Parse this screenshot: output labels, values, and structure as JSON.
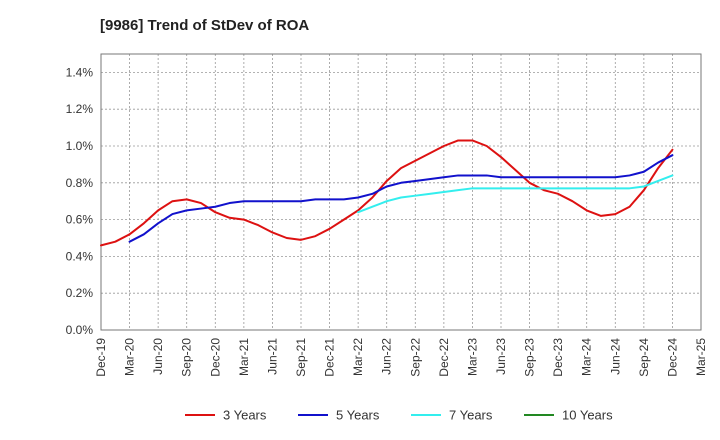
{
  "chart_data": {
    "type": "line",
    "title": "[9986]  Trend of StDev of ROA",
    "xlabel": "",
    "ylabel": "",
    "x_ticks": [
      "Dec-19",
      "Mar-20",
      "Jun-20",
      "Sep-20",
      "Dec-20",
      "Mar-21",
      "Jun-21",
      "Sep-21",
      "Dec-21",
      "Mar-22",
      "Jun-22",
      "Sep-22",
      "Dec-22",
      "Mar-23",
      "Jun-23",
      "Sep-23",
      "Dec-23",
      "Mar-24",
      "Jun-24",
      "Sep-24",
      "Dec-24",
      "Mar-25"
    ],
    "y_ticks": [
      "0.0%",
      "0.2%",
      "0.4%",
      "0.6%",
      "0.8%",
      "1.0%",
      "1.2%",
      "1.4%"
    ],
    "ylim": [
      0,
      1.5
    ],
    "grid": true,
    "legend_position": "bottom",
    "series": [
      {
        "name": "3 Years",
        "color": "#dd1111",
        "points": [
          [
            0,
            0.46
          ],
          [
            0.5,
            0.48
          ],
          [
            1,
            0.52
          ],
          [
            1.5,
            0.58
          ],
          [
            2,
            0.65
          ],
          [
            2.5,
            0.7
          ],
          [
            3,
            0.71
          ],
          [
            3.5,
            0.69
          ],
          [
            4,
            0.64
          ],
          [
            4.5,
            0.61
          ],
          [
            5,
            0.6
          ],
          [
            5.5,
            0.57
          ],
          [
            6,
            0.53
          ],
          [
            6.5,
            0.5
          ],
          [
            7,
            0.49
          ],
          [
            7.5,
            0.51
          ],
          [
            8,
            0.55
          ],
          [
            8.5,
            0.6
          ],
          [
            9,
            0.65
          ],
          [
            9.5,
            0.72
          ],
          [
            10,
            0.81
          ],
          [
            10.5,
            0.88
          ],
          [
            11,
            0.92
          ],
          [
            11.5,
            0.96
          ],
          [
            12,
            1.0
          ],
          [
            12.5,
            1.03
          ],
          [
            13,
            1.03
          ],
          [
            13.5,
            1.0
          ],
          [
            14,
            0.94
          ],
          [
            14.5,
            0.87
          ],
          [
            15,
            0.8
          ],
          [
            15.5,
            0.76
          ],
          [
            16,
            0.74
          ],
          [
            16.5,
            0.7
          ],
          [
            17,
            0.65
          ],
          [
            17.5,
            0.62
          ],
          [
            18,
            0.63
          ],
          [
            18.5,
            0.67
          ],
          [
            19,
            0.76
          ],
          [
            19.5,
            0.88
          ],
          [
            20,
            0.98
          ]
        ]
      },
      {
        "name": "5 Years",
        "color": "#1111cc",
        "points": [
          [
            1,
            0.48
          ],
          [
            1.5,
            0.52
          ],
          [
            2,
            0.58
          ],
          [
            2.5,
            0.63
          ],
          [
            3,
            0.65
          ],
          [
            3.5,
            0.66
          ],
          [
            4,
            0.67
          ],
          [
            4.5,
            0.69
          ],
          [
            5,
            0.7
          ],
          [
            5.5,
            0.7
          ],
          [
            6,
            0.7
          ],
          [
            6.5,
            0.7
          ],
          [
            7,
            0.7
          ],
          [
            7.5,
            0.71
          ],
          [
            8,
            0.71
          ],
          [
            8.5,
            0.71
          ],
          [
            9,
            0.72
          ],
          [
            9.5,
            0.74
          ],
          [
            10,
            0.78
          ],
          [
            10.5,
            0.8
          ],
          [
            11,
            0.81
          ],
          [
            11.5,
            0.82
          ],
          [
            12,
            0.83
          ],
          [
            12.5,
            0.84
          ],
          [
            13,
            0.84
          ],
          [
            13.5,
            0.84
          ],
          [
            14,
            0.83
          ],
          [
            14.5,
            0.83
          ],
          [
            15,
            0.83
          ],
          [
            15.5,
            0.83
          ],
          [
            16,
            0.83
          ],
          [
            16.5,
            0.83
          ],
          [
            17,
            0.83
          ],
          [
            17.5,
            0.83
          ],
          [
            18,
            0.83
          ],
          [
            18.5,
            0.84
          ],
          [
            19,
            0.86
          ],
          [
            19.5,
            0.91
          ],
          [
            20,
            0.95
          ]
        ]
      },
      {
        "name": "7 Years",
        "color": "#33eeee",
        "points": [
          [
            9,
            0.64
          ],
          [
            9.5,
            0.67
          ],
          [
            10,
            0.7
          ],
          [
            10.5,
            0.72
          ],
          [
            11,
            0.73
          ],
          [
            11.5,
            0.74
          ],
          [
            12,
            0.75
          ],
          [
            12.5,
            0.76
          ],
          [
            13,
            0.77
          ],
          [
            13.5,
            0.77
          ],
          [
            14,
            0.77
          ],
          [
            14.5,
            0.77
          ],
          [
            15,
            0.77
          ],
          [
            15.5,
            0.77
          ],
          [
            16,
            0.77
          ],
          [
            16.5,
            0.77
          ],
          [
            17,
            0.77
          ],
          [
            17.5,
            0.77
          ],
          [
            18,
            0.77
          ],
          [
            18.5,
            0.77
          ],
          [
            19,
            0.78
          ],
          [
            19.5,
            0.81
          ],
          [
            20,
            0.84
          ]
        ]
      },
      {
        "name": "10 Years",
        "color": "#228822",
        "points": []
      }
    ]
  }
}
